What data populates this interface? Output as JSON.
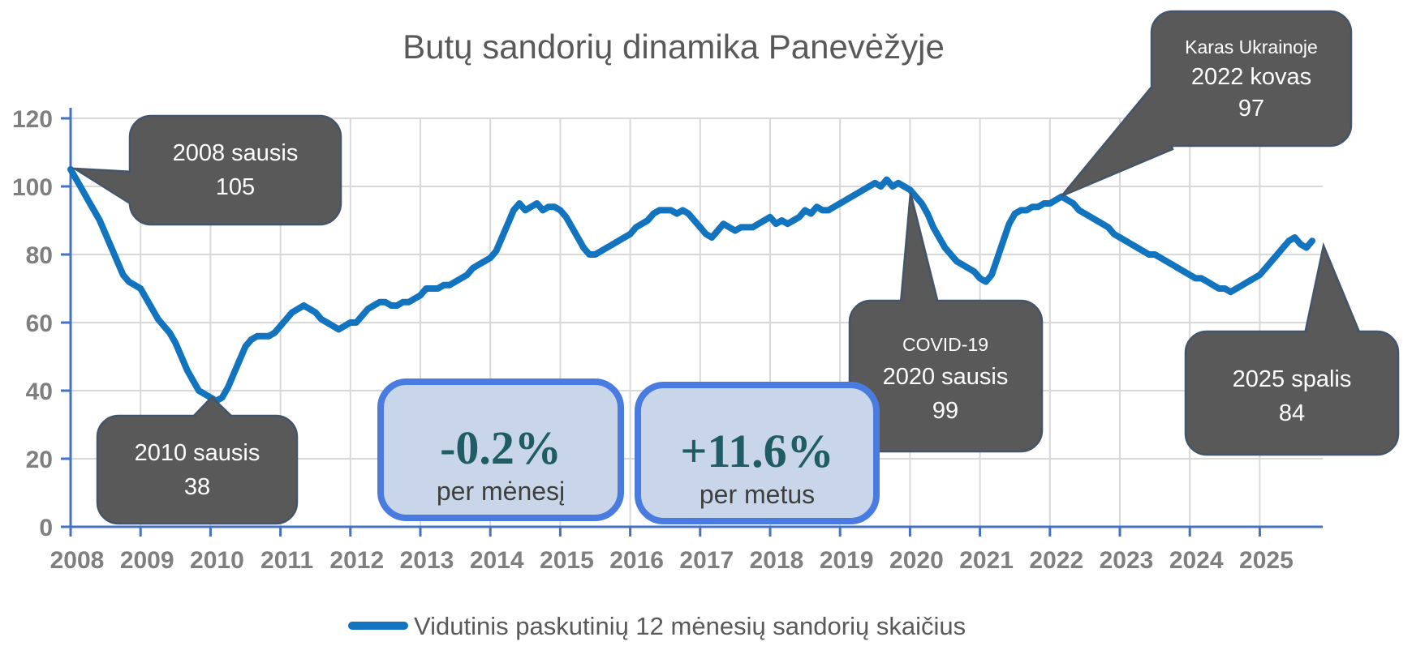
{
  "title": "Butų sandorių dinamika Panevėžyje",
  "legend": {
    "label": "Vidutinis paskutinių 12 mėnesių sandorių skaičius"
  },
  "annotations": {
    "a2008": {
      "line1": "2008 sausis",
      "line2": "105"
    },
    "a2010": {
      "line1": "2010 sausis",
      "line2": "38"
    },
    "covid": {
      "line1": "COVID-19",
      "line2": "2020 sausis",
      "line3": "99"
    },
    "karas": {
      "line1": "Karas Ukrainoje",
      "line2": "2022 kovas",
      "line3": "97"
    },
    "a2025": {
      "line1": "2025 spalis",
      "line2": "84"
    }
  },
  "stats": {
    "monthly": {
      "value": "-0.2%",
      "label": "per mėnesį"
    },
    "yearly": {
      "value": "+11.6%",
      "label": "per metus"
    }
  },
  "colors": {
    "line": "#1274be",
    "axis": "#4472c4",
    "grid": "#d9d9d9",
    "callout_fill": "#595959",
    "callout_border": "#44546a",
    "stat_fill": "#c9d6e9",
    "stat_border": "#4a7be0",
    "stat_value_text": "#1f5c63",
    "tick_label": "#7f7f7f",
    "title_text": "#595959"
  },
  "chart_data": {
    "type": "line",
    "title": "Butų sandorių dinamika Panevėžyje",
    "xlabel": "",
    "ylabel": "",
    "x_start": "2008-01",
    "x_end": "2025-10",
    "x_tick_labels": [
      "2008",
      "2009",
      "2010",
      "2011",
      "2012",
      "2013",
      "2014",
      "2015",
      "2016",
      "2017",
      "2018",
      "2019",
      "2020",
      "2021",
      "2022",
      "2023",
      "2024",
      "2025"
    ],
    "y_ticks": [
      0,
      20,
      40,
      60,
      80,
      100,
      120
    ],
    "ylim": [
      0,
      120
    ],
    "grid": true,
    "legend_position": "bottom",
    "series": [
      {
        "name": "Vidutinis paskutinių 12 mėnesių sandorių skaičius",
        "monthly_values": [
          105,
          102,
          99,
          96,
          93,
          90,
          86,
          82,
          78,
          74,
          72,
          71,
          70,
          67,
          64,
          61,
          59,
          57,
          54,
          50,
          46,
          43,
          40,
          39,
          38,
          37,
          38,
          41,
          45,
          49,
          53,
          55,
          56,
          56,
          56,
          57,
          59,
          61,
          63,
          64,
          65,
          64,
          63,
          61,
          60,
          59,
          58,
          59,
          60,
          60,
          62,
          64,
          65,
          66,
          66,
          65,
          65,
          66,
          66,
          67,
          68,
          70,
          70,
          70,
          71,
          71,
          72,
          73,
          74,
          76,
          77,
          78,
          79,
          81,
          85,
          89,
          93,
          95,
          93,
          94,
          95,
          93,
          94,
          94,
          93,
          91,
          88,
          85,
          82,
          80,
          80,
          81,
          82,
          83,
          84,
          85,
          86,
          88,
          89,
          90,
          92,
          93,
          93,
          93,
          92,
          93,
          92,
          90,
          88,
          86,
          85,
          87,
          89,
          88,
          87,
          88,
          88,
          88,
          89,
          90,
          91,
          89,
          90,
          89,
          90,
          91,
          93,
          92,
          94,
          93,
          93,
          94,
          95,
          96,
          97,
          98,
          99,
          100,
          101,
          100,
          102,
          100,
          101,
          100,
          99,
          97,
          95,
          92,
          88,
          85,
          82,
          80,
          78,
          77,
          76,
          75,
          73,
          72,
          74,
          79,
          84,
          89,
          92,
          93,
          93,
          94,
          94,
          95,
          95,
          96,
          97,
          96,
          95,
          93,
          92,
          91,
          90,
          89,
          88,
          86,
          85,
          84,
          83,
          82,
          81,
          80,
          80,
          79,
          78,
          77,
          76,
          75,
          74,
          73,
          73,
          72,
          71,
          70,
          70,
          69,
          70,
          71,
          72,
          73,
          74,
          76,
          78,
          80,
          82,
          84,
          85,
          83,
          82,
          84
        ]
      }
    ],
    "key_points": [
      {
        "label": "2008 sausis",
        "value": 105
      },
      {
        "label": "2010 sausis",
        "value": 38
      },
      {
        "label": "COVID-19 2020 sausis",
        "value": 99
      },
      {
        "label": "Karas Ukrainoje 2022 kovas",
        "value": 97
      },
      {
        "label": "2025 spalis",
        "value": 84
      }
    ]
  }
}
